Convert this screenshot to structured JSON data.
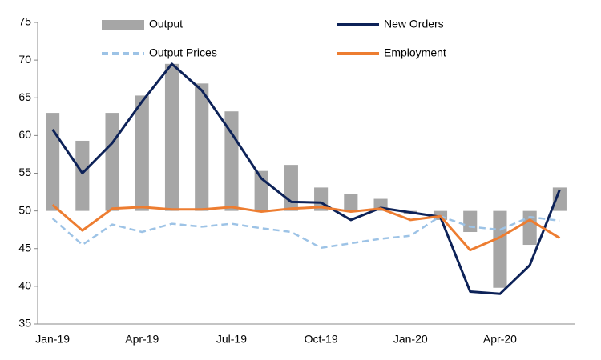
{
  "chart_data": {
    "type": "combo",
    "categories": [
      "Jan-19",
      null,
      null,
      "Apr-19",
      null,
      null,
      "Jul-19",
      null,
      null,
      "Oct-19",
      null,
      null,
      "Jan-20",
      null,
      null,
      "Apr-20",
      null,
      null
    ],
    "series": [
      {
        "name": "Output",
        "type": "bar",
        "color": "#a6a6a6",
        "values": [
          63.0,
          59.3,
          63.0,
          65.3,
          69.5,
          66.9,
          63.2,
          55.3,
          56.1,
          53.1,
          52.2,
          51.6,
          49.6,
          48.8,
          47.2,
          39.8,
          45.5,
          53.1
        ]
      },
      {
        "name": "New Orders",
        "type": "line",
        "color": "#0d2258",
        "values": [
          60.8,
          55.0,
          59.0,
          64.5,
          69.5,
          66.0,
          60.3,
          54.3,
          51.2,
          51.1,
          48.8,
          50.4,
          49.8,
          49.2,
          39.3,
          39.0,
          42.8,
          52.8
        ]
      },
      {
        "name": "Output Prices",
        "type": "line",
        "dashed": true,
        "color": "#9dc3e6",
        "values": [
          49.0,
          45.5,
          48.2,
          47.2,
          48.3,
          47.9,
          48.3,
          47.7,
          47.2,
          45.1,
          45.7,
          46.3,
          46.7,
          49.3,
          47.9,
          47.5,
          49.2,
          48.7
        ]
      },
      {
        "name": "Employment",
        "type": "line",
        "color": "#ed7d31",
        "values": [
          50.8,
          47.4,
          50.3,
          50.5,
          50.2,
          50.2,
          50.5,
          49.9,
          50.3,
          50.5,
          49.9,
          50.3,
          48.8,
          49.3,
          44.8,
          46.5,
          48.8,
          46.4
        ]
      }
    ],
    "bar_baseline": 50,
    "ylim": [
      35,
      75
    ],
    "yticks": [
      35,
      40,
      45,
      50,
      55,
      60,
      65,
      70,
      75
    ],
    "grid": false
  }
}
